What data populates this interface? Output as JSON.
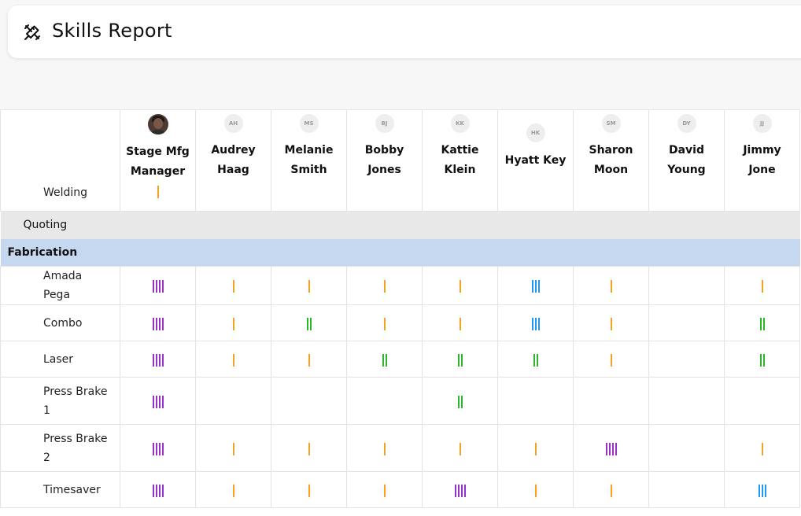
{
  "header": {
    "title": "Skills Report",
    "logo_icon": "tools-icon"
  },
  "table": {
    "header_skill": {
      "label": "Welding",
      "level": 1
    },
    "people": [
      {
        "initials": "",
        "name_line1": "Stage Mfg",
        "name_line2": "Manager",
        "avatar_type": "photo",
        "header_level": 1
      },
      {
        "initials": "AH",
        "name_line1": "Audrey",
        "name_line2": "Haag",
        "avatar_type": "initials",
        "header_level": 0
      },
      {
        "initials": "MS",
        "name_line1": "Melanie",
        "name_line2": "Smith",
        "avatar_type": "initials",
        "header_level": 0
      },
      {
        "initials": "BJ",
        "name_line1": "Bobby",
        "name_line2": "Jones",
        "avatar_type": "initials",
        "header_level": 0
      },
      {
        "initials": "KK",
        "name_line1": "Kattie",
        "name_line2": "Klein",
        "avatar_type": "initials",
        "header_level": 0
      },
      {
        "initials": "HK",
        "name_line1": "Hyatt Key",
        "name_line2": "",
        "avatar_type": "initials",
        "header_level": 0
      },
      {
        "initials": "SM",
        "name_line1": "Sharon",
        "name_line2": "Moon",
        "avatar_type": "initials",
        "header_level": 0
      },
      {
        "initials": "DY",
        "name_line1": "David",
        "name_line2": "Young",
        "avatar_type": "initials",
        "header_level": 0
      },
      {
        "initials": "JJ",
        "name_line1": "Jimmy",
        "name_line2": "Jone",
        "avatar_type": "initials",
        "header_level": 0
      }
    ],
    "category": "Quoting",
    "group": "Fabrication",
    "skills": [
      {
        "name": "Amada Pega",
        "levels": [
          4,
          1,
          1,
          1,
          1,
          3,
          1,
          0,
          1
        ]
      },
      {
        "name": "Combo",
        "levels": [
          4,
          1,
          2,
          1,
          1,
          3,
          1,
          0,
          2
        ]
      },
      {
        "name": "Laser",
        "levels": [
          4,
          1,
          1,
          2,
          2,
          2,
          1,
          0,
          2
        ]
      },
      {
        "name": "Press Brake 1",
        "levels": [
          4,
          0,
          0,
          0,
          2,
          0,
          0,
          0,
          0
        ]
      },
      {
        "name": "Press Brake 2",
        "levels": [
          4,
          1,
          1,
          1,
          1,
          1,
          4,
          0,
          1
        ]
      },
      {
        "name": "Timesaver",
        "levels": [
          4,
          1,
          1,
          1,
          4,
          1,
          1,
          0,
          3
        ]
      }
    ],
    "level_colors": {
      "1": "#f5a123",
      "2": "#2bb52b",
      "3": "#2196f3",
      "4": "#9b30c8"
    }
  }
}
